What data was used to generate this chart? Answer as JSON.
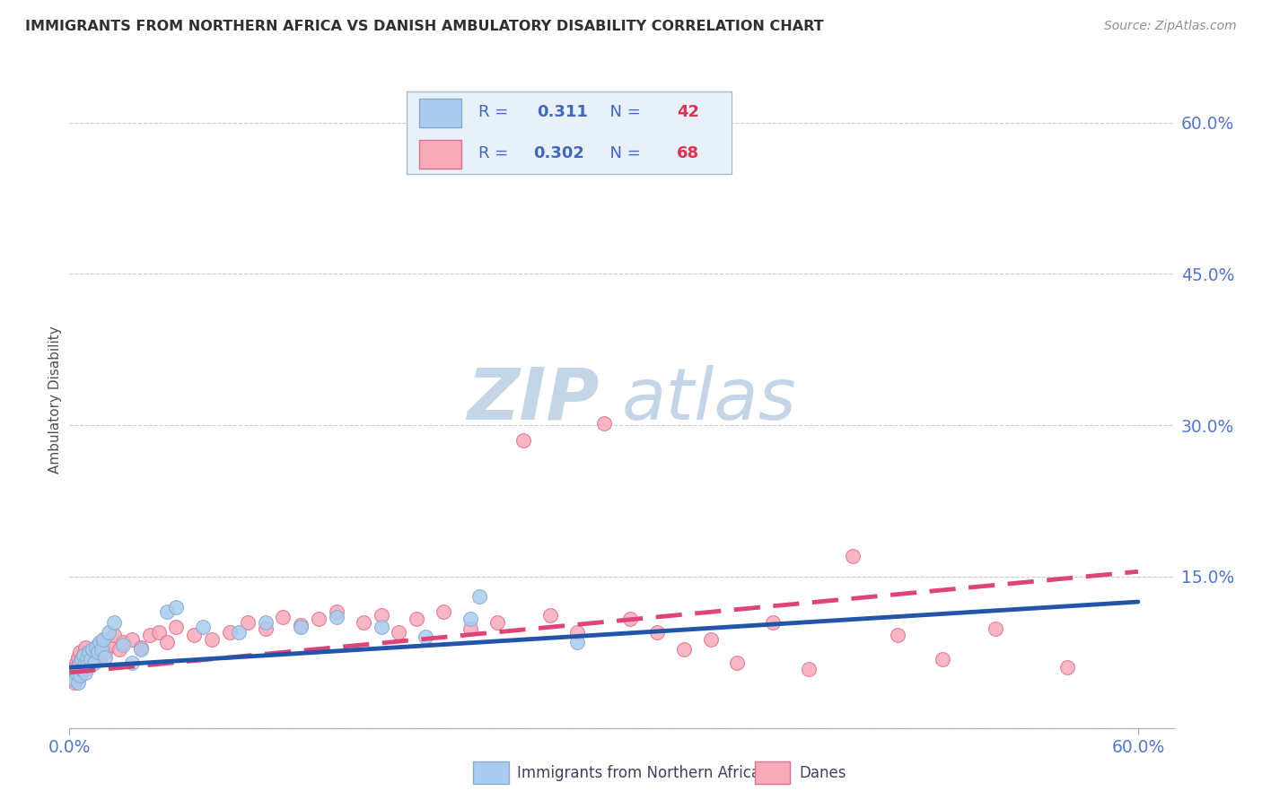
{
  "title": "IMMIGRANTS FROM NORTHERN AFRICA VS DANISH AMBULATORY DISABILITY CORRELATION CHART",
  "source": "Source: ZipAtlas.com",
  "ylabel_label": "Ambulatory Disability",
  "legend_entries": [
    {
      "label": "Immigrants from Northern Africa",
      "R": "0.311",
      "N": "42",
      "color": "#aaccee",
      "edge": "#88aacc"
    },
    {
      "label": "Danes",
      "R": "0.302",
      "N": "68",
      "color": "#f8aabb",
      "edge": "#e07090"
    }
  ],
  "blue_scatter_x": [
    0.002,
    0.003,
    0.004,
    0.005,
    0.005,
    0.006,
    0.006,
    0.007,
    0.007,
    0.008,
    0.008,
    0.009,
    0.009,
    0.01,
    0.01,
    0.011,
    0.012,
    0.013,
    0.014,
    0.015,
    0.016,
    0.017,
    0.018,
    0.019,
    0.02,
    0.022,
    0.025,
    0.03,
    0.035,
    0.04,
    0.055,
    0.06,
    0.075,
    0.095,
    0.11,
    0.13,
    0.15,
    0.175,
    0.2,
    0.225,
    0.285,
    0.23
  ],
  "blue_scatter_y": [
    0.05,
    0.048,
    0.055,
    0.045,
    0.06,
    0.052,
    0.065,
    0.058,
    0.068,
    0.06,
    0.072,
    0.065,
    0.055,
    0.07,
    0.062,
    0.075,
    0.068,
    0.078,
    0.065,
    0.08,
    0.075,
    0.085,
    0.078,
    0.088,
    0.07,
    0.095,
    0.105,
    0.082,
    0.065,
    0.078,
    0.115,
    0.12,
    0.1,
    0.095,
    0.105,
    0.1,
    0.11,
    0.1,
    0.09,
    0.108,
    0.085,
    0.13
  ],
  "pink_scatter_x": [
    0.001,
    0.002,
    0.003,
    0.004,
    0.004,
    0.005,
    0.005,
    0.006,
    0.006,
    0.007,
    0.007,
    0.008,
    0.008,
    0.009,
    0.009,
    0.01,
    0.011,
    0.012,
    0.013,
    0.014,
    0.015,
    0.016,
    0.017,
    0.018,
    0.019,
    0.02,
    0.022,
    0.025,
    0.028,
    0.03,
    0.035,
    0.04,
    0.045,
    0.05,
    0.055,
    0.06,
    0.07,
    0.08,
    0.09,
    0.1,
    0.11,
    0.12,
    0.13,
    0.14,
    0.15,
    0.165,
    0.175,
    0.185,
    0.195,
    0.21,
    0.225,
    0.24,
    0.255,
    0.27,
    0.285,
    0.3,
    0.315,
    0.33,
    0.345,
    0.36,
    0.375,
    0.395,
    0.415,
    0.44,
    0.465,
    0.49,
    0.52,
    0.56
  ],
  "pink_scatter_y": [
    0.052,
    0.058,
    0.045,
    0.065,
    0.055,
    0.062,
    0.07,
    0.055,
    0.075,
    0.068,
    0.06,
    0.072,
    0.065,
    0.08,
    0.058,
    0.068,
    0.075,
    0.07,
    0.065,
    0.078,
    0.072,
    0.082,
    0.068,
    0.078,
    0.088,
    0.075,
    0.082,
    0.092,
    0.078,
    0.085,
    0.088,
    0.08,
    0.092,
    0.095,
    0.085,
    0.1,
    0.092,
    0.088,
    0.095,
    0.105,
    0.098,
    0.11,
    0.102,
    0.108,
    0.115,
    0.105,
    0.112,
    0.095,
    0.108,
    0.115,
    0.098,
    0.105,
    0.285,
    0.112,
    0.095,
    0.302,
    0.108,
    0.095,
    0.078,
    0.088,
    0.065,
    0.105,
    0.058,
    0.17,
    0.092,
    0.068,
    0.098,
    0.06
  ],
  "blue_line_x": [
    0.0,
    0.6
  ],
  "blue_line_y": [
    0.06,
    0.125
  ],
  "pink_line_x": [
    0.0,
    0.6
  ],
  "pink_line_y": [
    0.055,
    0.155
  ],
  "blue_color": "#aaccee",
  "blue_edge_color": "#88aacc",
  "pink_color": "#f8aabb",
  "pink_edge_color": "#e07090",
  "blue_line_color": "#2255aa",
  "pink_line_color": "#dd4477",
  "title_color": "#303030",
  "source_color": "#909090",
  "axis_tick_color": "#5577cc",
  "grid_color": "#cccccc",
  "legend_text_color": "#4466bb",
  "background_color": "#ffffff",
  "watermark_zip_color": "#c8d8ee",
  "watermark_atlas_color": "#c8d8ee",
  "xlim": [
    0.0,
    0.62
  ],
  "ylim": [
    0.0,
    0.65
  ],
  "scatter_size": 130
}
